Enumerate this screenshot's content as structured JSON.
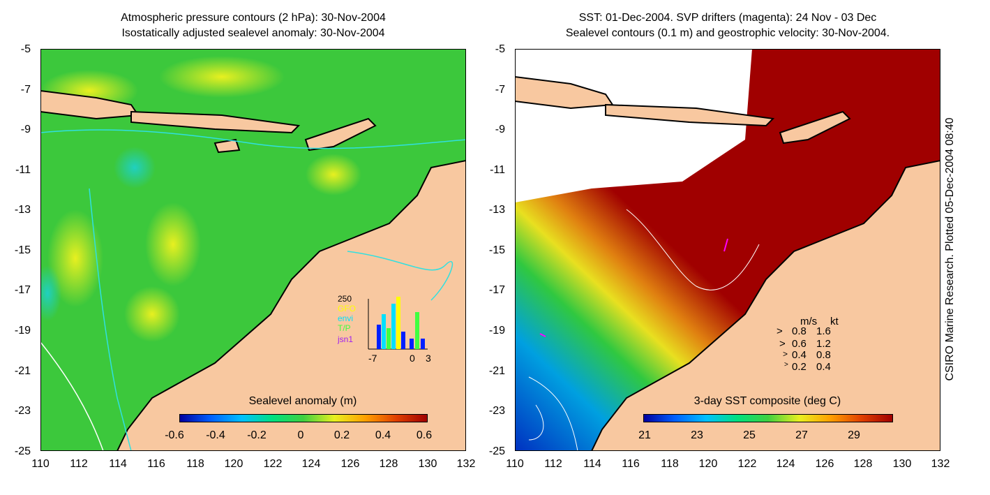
{
  "left_panel": {
    "title_line1": "Atmospheric pressure contours (2 hPa): 30-Nov-2004",
    "title_line2": "Isostatically adjusted sealevel anomaly: 30-Nov-2004",
    "colorbar_title": "Sealevel anomaly (m)",
    "colorbar_ticks": [
      "-0.6",
      "-0.4",
      "-0.2",
      "0",
      "0.2",
      "0.4",
      "0.6"
    ],
    "histogram": {
      "ymax_label": "250",
      "legend": [
        "GFO",
        "envi",
        "T/P",
        "jsn1"
      ],
      "legend_colors": [
        "#ffff00",
        "#00e0ff",
        "#40ff40",
        "#a020f0"
      ],
      "x_ticks": [
        "-7",
        "0",
        "3"
      ]
    }
  },
  "right_panel": {
    "title_line1": "SST: 01-Dec-2004. SVP drifters (magenta): 24 Nov - 03 Dec",
    "title_line2": "Sealevel contours (0.1 m) and geostrophic velocity: 30-Nov-2004.",
    "colorbar_title": "3-day SST composite (deg C)",
    "colorbar_ticks": [
      "21",
      "23",
      "25",
      "27",
      "29"
    ],
    "velocity_legend": {
      "header_units": "m/s",
      "header_units2": "kt",
      "rows": [
        {
          "ms": "0.8",
          "kt": "1.6"
        },
        {
          "ms": "0.6",
          "kt": "1.2"
        },
        {
          "ms": "0.4",
          "kt": "0.8"
        },
        {
          "ms": "0.2",
          "kt": "0.4"
        }
      ]
    }
  },
  "axes": {
    "y_ticks": [
      "-5",
      "-7",
      "-9",
      "-11",
      "-13",
      "-15",
      "-17",
      "-19",
      "-21",
      "-23",
      "-25"
    ],
    "x_ticks": [
      "110",
      "112",
      "114",
      "116",
      "118",
      "120",
      "122",
      "124",
      "126",
      "128",
      "130",
      "132"
    ]
  },
  "credit": "CSIRO Marine Research. Plotted 05-Dec-2004 08:40",
  "colors": {
    "land": "#f8c8a0",
    "ocean_green": "#40c840",
    "sst_red": "#a00000"
  }
}
